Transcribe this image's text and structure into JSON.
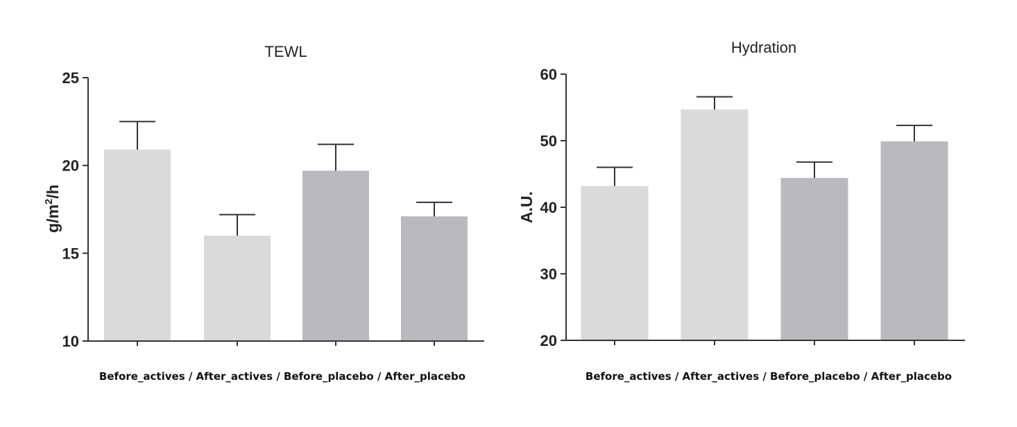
{
  "chart_data": [
    {
      "type": "bar",
      "title": "TEWL",
      "ylabel": "g/m2/h",
      "ylabel_base": "g/m",
      "ylabel_sup": "2",
      "ylabel_tail": "/h",
      "xlabel": "Before_actives / After_actives / Before_placebo / After_placebo",
      "categories": [
        "Before_actives",
        "After_actives",
        "Before_placebo",
        "After_placebo"
      ],
      "values": [
        20.9,
        16.0,
        19.7,
        17.1
      ],
      "errors": [
        1.6,
        1.2,
        1.5,
        0.8
      ],
      "ylim": [
        10,
        25
      ],
      "yticks": [
        10,
        15,
        20,
        25
      ],
      "colors": [
        "#d9dadc",
        "#d9dadc",
        "#b9babe",
        "#b9babe"
      ],
      "grid": false
    },
    {
      "type": "bar",
      "title": "Hydration",
      "ylabel": "A.U.",
      "xlabel": "Before_actives / After_actives / Before_placebo / After_placebo",
      "categories": [
        "Before_actives",
        "After_actives",
        "Before_placebo",
        "After_placebo"
      ],
      "values": [
        43.2,
        54.7,
        44.4,
        49.9
      ],
      "errors": [
        2.8,
        1.9,
        2.4,
        2.4
      ],
      "ylim": [
        20,
        60
      ],
      "yticks": [
        20,
        30,
        40,
        50,
        60
      ],
      "colors": [
        "#d9dadc",
        "#d9dadc",
        "#b9babe",
        "#b9babe"
      ],
      "grid": false
    }
  ]
}
